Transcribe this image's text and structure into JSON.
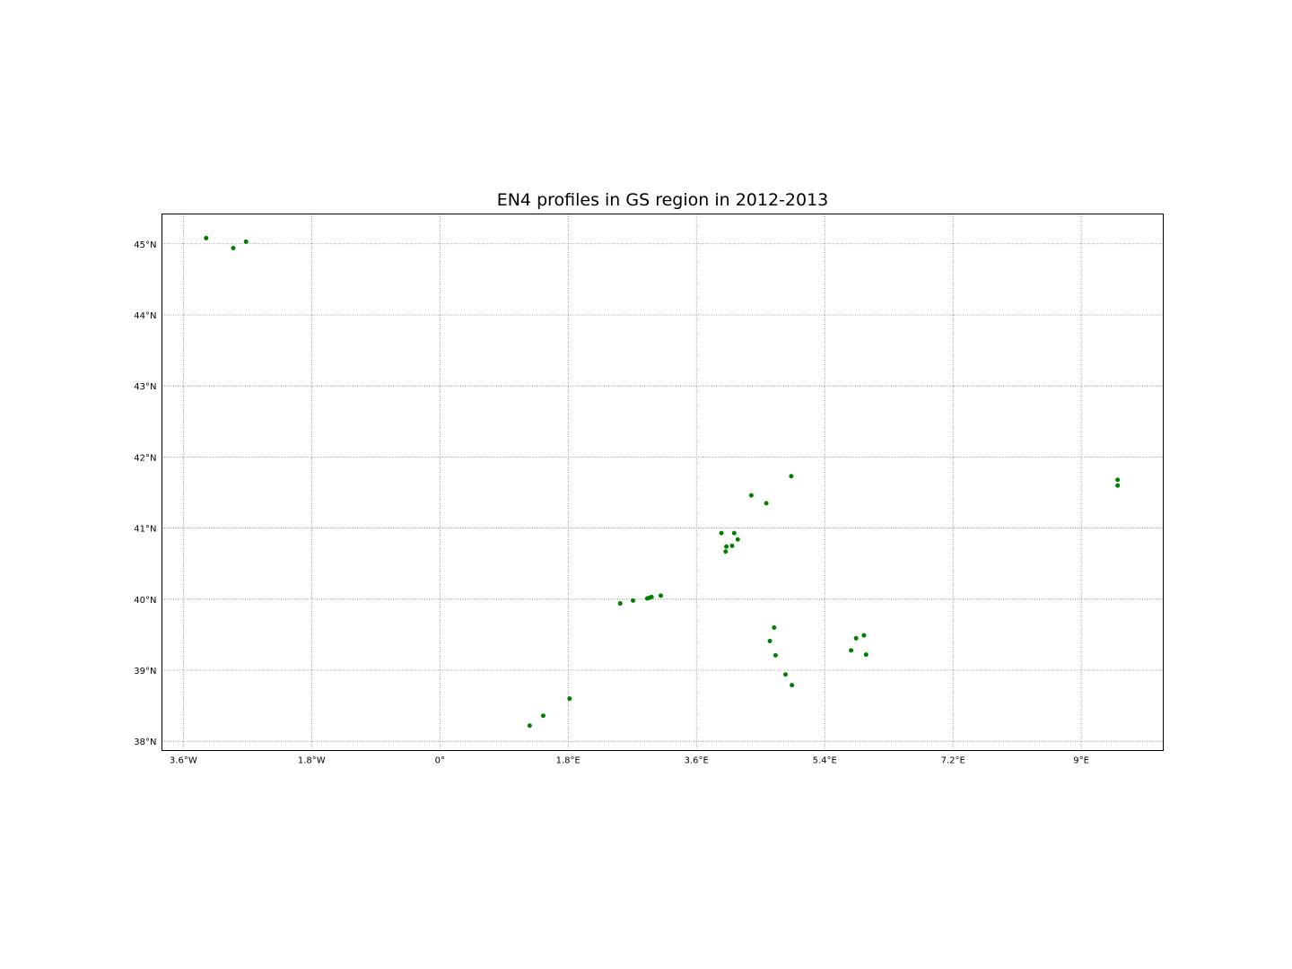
{
  "chart_data": {
    "type": "scatter",
    "title": "EN4 profiles in GS region in 2012-2013",
    "xlabel": "",
    "ylabel": "",
    "xlim": [
      -3.9,
      10.15
    ],
    "ylim": [
      37.87,
      45.42
    ],
    "grid": true,
    "marker_color": "#008000",
    "x_ticks": [
      {
        "value": -3.6,
        "label": "3.6°W"
      },
      {
        "value": -1.8,
        "label": "1.8°W"
      },
      {
        "value": 0,
        "label": "0°"
      },
      {
        "value": 1.8,
        "label": "1.8°E"
      },
      {
        "value": 3.6,
        "label": "3.6°E"
      },
      {
        "value": 5.4,
        "label": "5.4°E"
      },
      {
        "value": 7.2,
        "label": "7.2°E"
      },
      {
        "value": 9.0,
        "label": "9°E"
      }
    ],
    "y_ticks": [
      {
        "value": 38,
        "label": "38°N"
      },
      {
        "value": 39,
        "label": "39°N"
      },
      {
        "value": 40,
        "label": "40°N"
      },
      {
        "value": 41,
        "label": "41°N"
      },
      {
        "value": 42,
        "label": "42°N"
      },
      {
        "value": 43,
        "label": "43°N"
      },
      {
        "value": 44,
        "label": "44°N"
      },
      {
        "value": 45,
        "label": "45°N"
      }
    ],
    "points": [
      {
        "x": -3.28,
        "y": 45.08
      },
      {
        "x": -2.9,
        "y": 44.94
      },
      {
        "x": -2.72,
        "y": 45.03
      },
      {
        "x": 1.26,
        "y": 38.22
      },
      {
        "x": 1.45,
        "y": 38.36
      },
      {
        "x": 1.82,
        "y": 38.6
      },
      {
        "x": 2.53,
        "y": 39.94
      },
      {
        "x": 2.71,
        "y": 39.98
      },
      {
        "x": 2.91,
        "y": 40.01
      },
      {
        "x": 2.94,
        "y": 40.02
      },
      {
        "x": 2.97,
        "y": 40.03
      },
      {
        "x": 3.1,
        "y": 40.05
      },
      {
        "x": 3.95,
        "y": 40.93
      },
      {
        "x": 4.02,
        "y": 40.74
      },
      {
        "x": 4.01,
        "y": 40.67
      },
      {
        "x": 4.1,
        "y": 40.75
      },
      {
        "x": 4.13,
        "y": 40.93
      },
      {
        "x": 4.18,
        "y": 40.84
      },
      {
        "x": 4.37,
        "y": 41.46
      },
      {
        "x": 4.58,
        "y": 41.35
      },
      {
        "x": 4.93,
        "y": 41.73
      },
      {
        "x": 4.63,
        "y": 39.41
      },
      {
        "x": 4.69,
        "y": 39.6
      },
      {
        "x": 4.71,
        "y": 39.21
      },
      {
        "x": 4.85,
        "y": 38.94
      },
      {
        "x": 4.94,
        "y": 38.79
      },
      {
        "x": 5.77,
        "y": 39.28
      },
      {
        "x": 5.84,
        "y": 39.45
      },
      {
        "x": 5.95,
        "y": 39.49
      },
      {
        "x": 5.98,
        "y": 39.22
      },
      {
        "x": 9.51,
        "y": 41.68
      },
      {
        "x": 9.51,
        "y": 41.6
      }
    ]
  }
}
